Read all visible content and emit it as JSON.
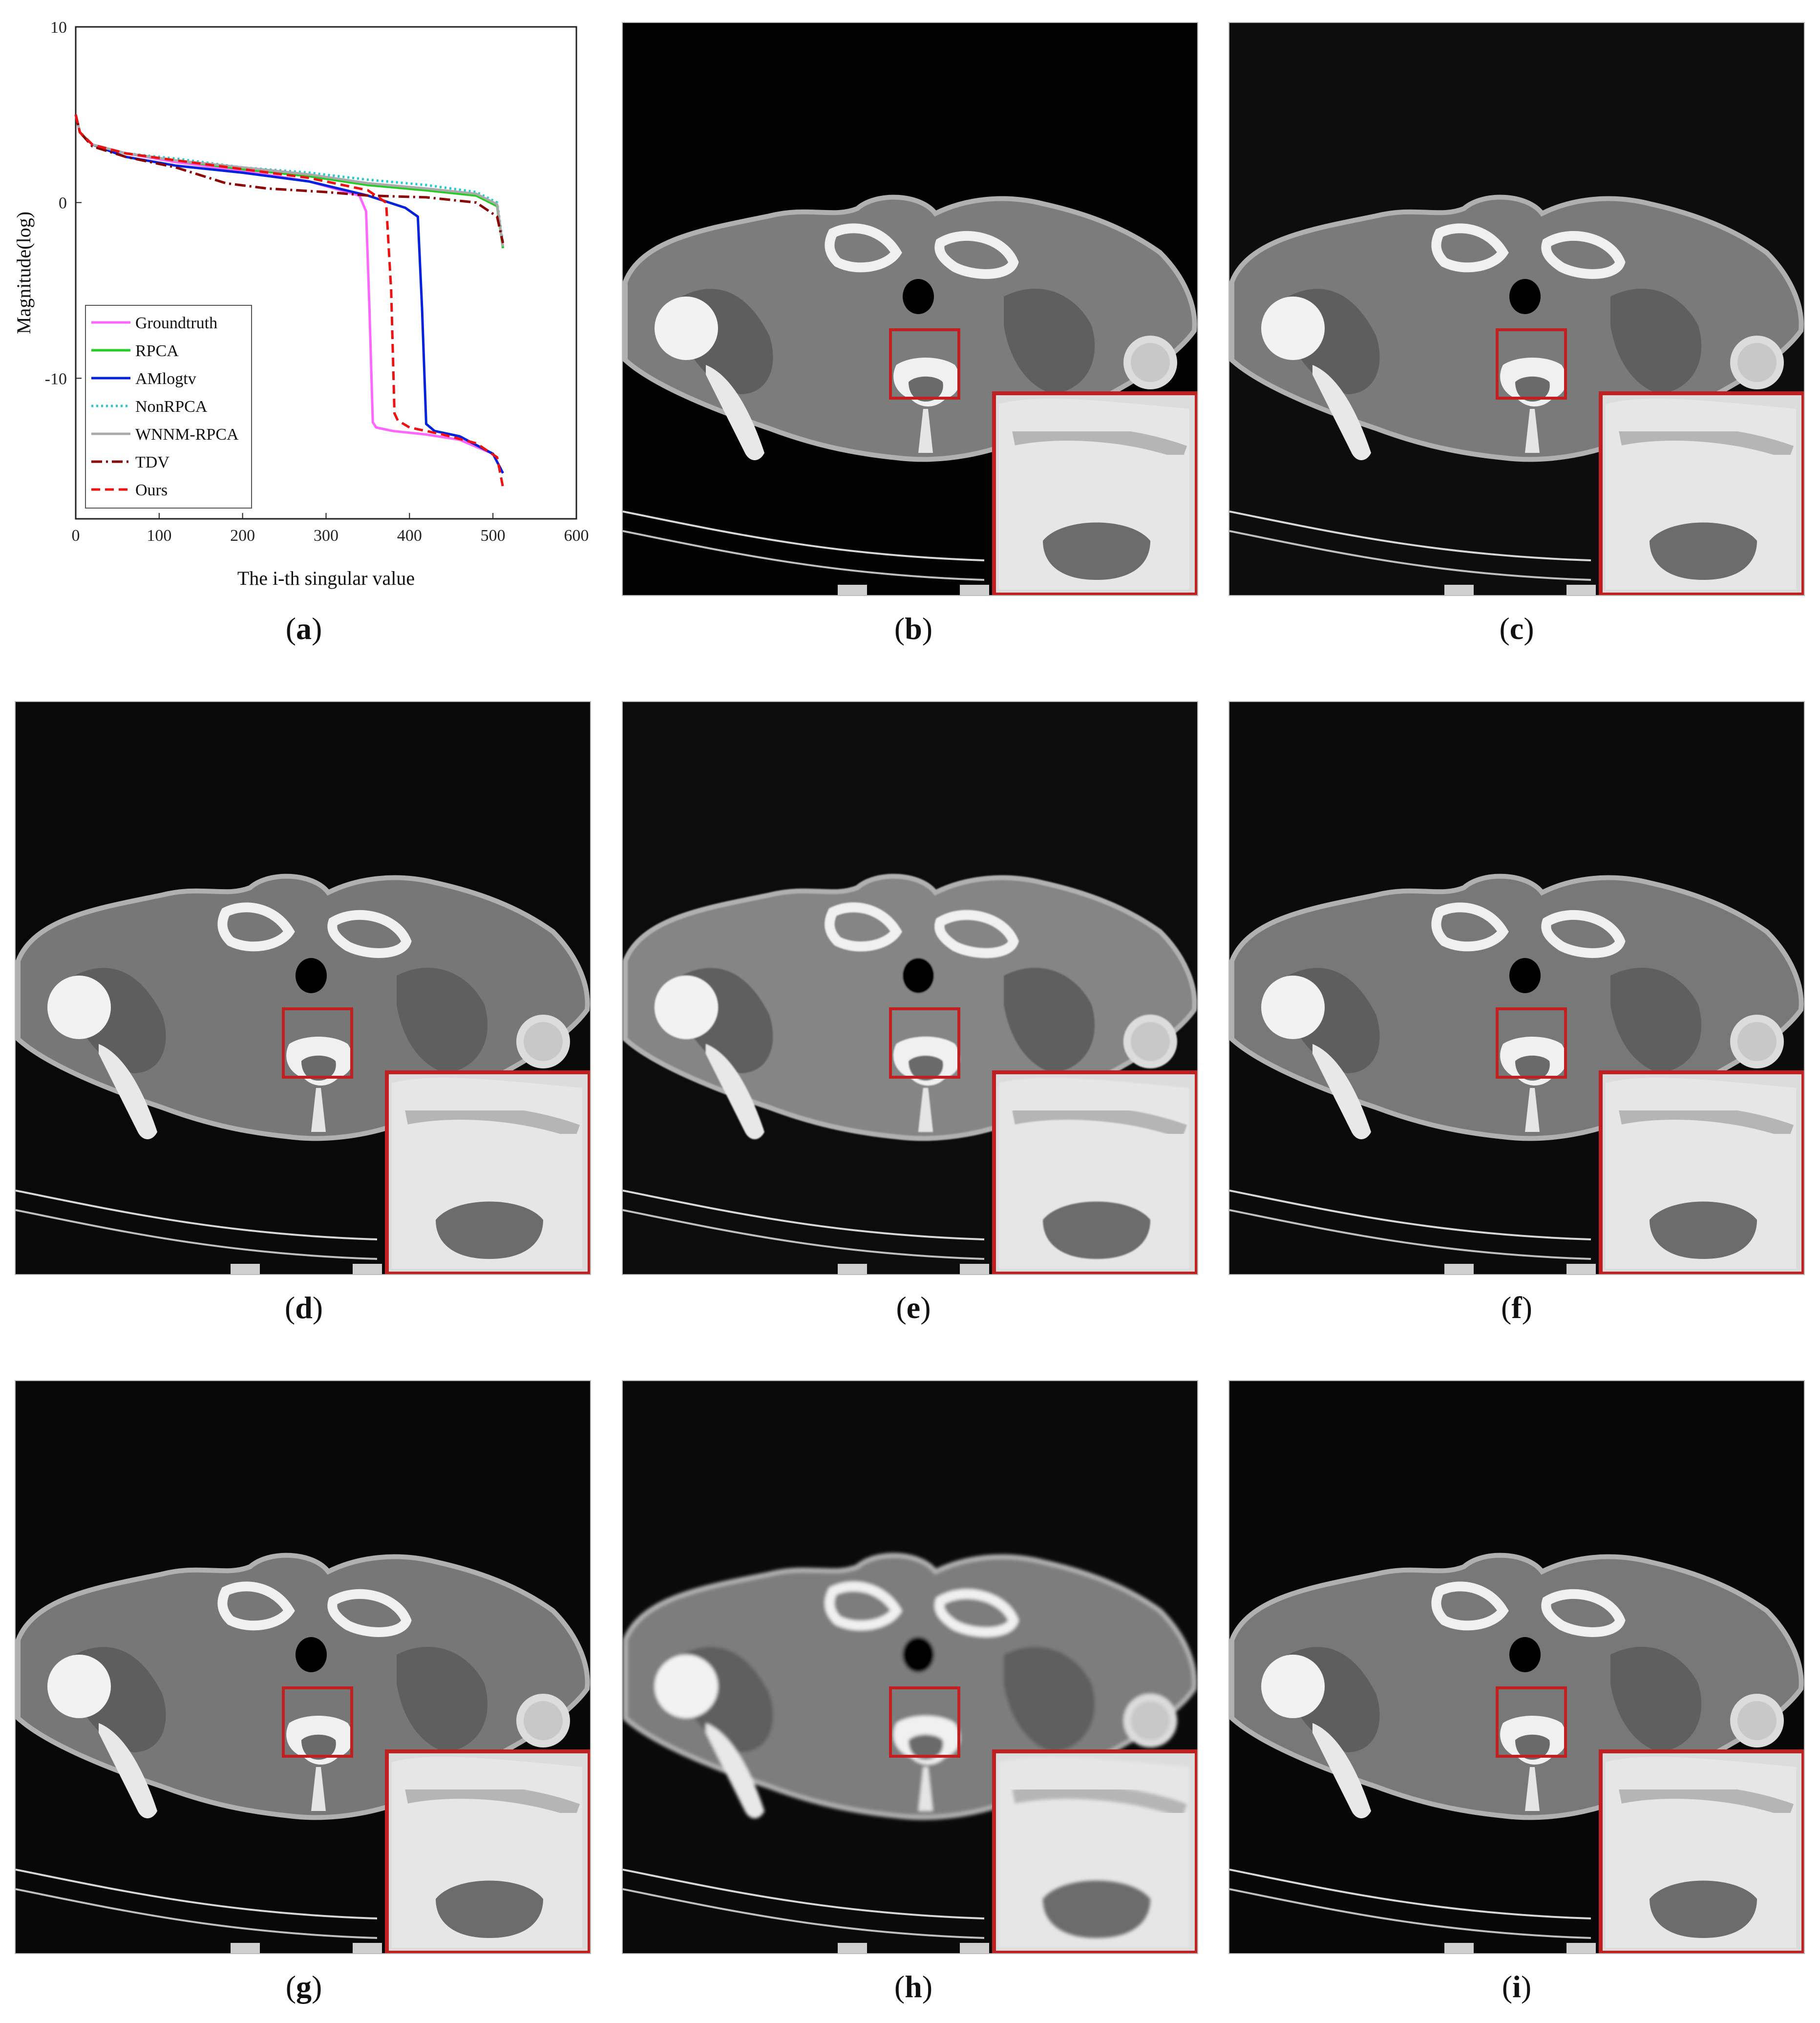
{
  "chart_data": {
    "type": "line",
    "xlabel": "The i-th singular value",
    "ylabel": "Magnitude(log)",
    "xlim": [
      0,
      600
    ],
    "ylim": [
      -18,
      10
    ],
    "xticks": [
      "0",
      "100",
      "200",
      "300",
      "400",
      "500",
      "600"
    ],
    "yticks": [
      "10",
      "0",
      "-10"
    ],
    "grid": false,
    "legend_position": "bottom-left",
    "series": [
      {
        "name": "Groundtruth",
        "color": "#ff66ff",
        "style": "solid",
        "x": [
          0,
          5,
          20,
          60,
          120,
          200,
          280,
          340,
          348,
          352,
          356,
          360,
          380,
          420,
          460,
          500,
          512
        ],
        "y": [
          5.0,
          4.0,
          3.3,
          2.8,
          2.3,
          1.8,
          1.2,
          0.4,
          -0.5,
          -6.0,
          -12.5,
          -12.8,
          -13.0,
          -13.2,
          -13.5,
          -14.3,
          -15.4
        ]
      },
      {
        "name": "RPCA",
        "color": "#22cc22",
        "style": "solid",
        "x": [
          0,
          5,
          20,
          60,
          120,
          200,
          280,
          350,
          420,
          480,
          505,
          512
        ],
        "y": [
          5.0,
          4.0,
          3.3,
          2.8,
          2.4,
          1.9,
          1.5,
          1.0,
          0.7,
          0.4,
          -0.2,
          -2.6
        ]
      },
      {
        "name": "AMlogtv",
        "color": "#0022dd",
        "style": "solid",
        "x": [
          0,
          5,
          20,
          60,
          120,
          200,
          280,
          350,
          395,
          410,
          415,
          420,
          430,
          460,
          500,
          512
        ],
        "y": [
          5.0,
          4.0,
          3.3,
          2.6,
          2.1,
          1.7,
          1.2,
          0.4,
          -0.3,
          -0.8,
          -6.0,
          -12.6,
          -13.0,
          -13.3,
          -14.3,
          -15.4
        ]
      },
      {
        "name": "NonRPCA",
        "color": "#22cccc",
        "style": "dotted",
        "x": [
          0,
          5,
          20,
          60,
          120,
          200,
          280,
          350,
          420,
          480,
          505,
          512
        ],
        "y": [
          5.0,
          4.0,
          3.3,
          2.8,
          2.5,
          2.0,
          1.7,
          1.3,
          1.0,
          0.6,
          0.0,
          -2.3
        ]
      },
      {
        "name": "WNNM-RPCA",
        "color": "#aaaaaa",
        "style": "solid",
        "x": [
          0,
          5,
          20,
          60,
          120,
          200,
          280,
          350,
          420,
          480,
          505,
          512
        ],
        "y": [
          5.0,
          4.0,
          3.3,
          2.8,
          2.4,
          2.0,
          1.6,
          1.1,
          0.8,
          0.5,
          -0.1,
          -2.5
        ]
      },
      {
        "name": "TDV",
        "color": "#8b0000",
        "style": "dashdot",
        "x": [
          0,
          5,
          20,
          60,
          120,
          180,
          230,
          300,
          350,
          420,
          480,
          505,
          512
        ],
        "y": [
          5.0,
          4.0,
          3.2,
          2.6,
          2.0,
          1.1,
          0.8,
          0.6,
          0.4,
          0.3,
          0.0,
          -0.8,
          -2.3
        ]
      },
      {
        "name": "Ours",
        "color": "#ee1111",
        "style": "dashed",
        "x": [
          0,
          5,
          20,
          60,
          120,
          200,
          280,
          350,
          372,
          378,
          382,
          386,
          400,
          440,
          480,
          505,
          512
        ],
        "y": [
          5.0,
          4.0,
          3.3,
          2.8,
          2.4,
          1.9,
          1.4,
          0.7,
          0.0,
          -5.0,
          -12.0,
          -12.4,
          -12.8,
          -13.2,
          -13.7,
          -14.5,
          -16.2
        ]
      }
    ]
  },
  "captions": {
    "a": "a",
    "b": "b",
    "c": "c",
    "d": "d",
    "e": "e",
    "f": "f",
    "g": "g",
    "h": "h",
    "i": "i"
  },
  "colors": {
    "inset_border": "#c02020",
    "image_background": "#020202"
  }
}
